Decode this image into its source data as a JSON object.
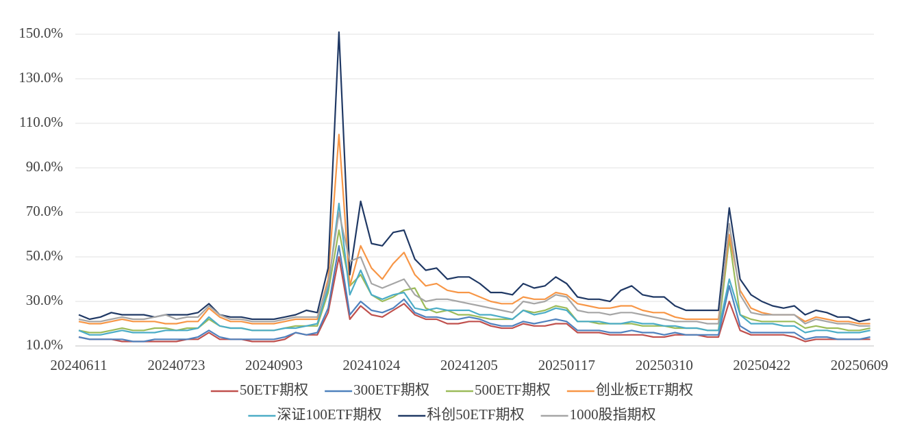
{
  "chart_data": {
    "type": "line",
    "categories": [
      "20240611",
      null,
      null,
      null,
      null,
      null,
      null,
      null,
      null,
      "20240723",
      null,
      null,
      null,
      null,
      null,
      null,
      null,
      null,
      "20240903",
      null,
      null,
      null,
      null,
      null,
      null,
      null,
      null,
      "20241024",
      null,
      null,
      null,
      null,
      null,
      null,
      null,
      null,
      "20241205",
      null,
      null,
      null,
      null,
      null,
      null,
      null,
      null,
      "20250117",
      null,
      null,
      null,
      null,
      null,
      null,
      null,
      null,
      "20250310",
      null,
      null,
      null,
      null,
      null,
      null,
      null,
      null,
      "20250422",
      null,
      null,
      null,
      null,
      null,
      null,
      null,
      null,
      "20250609",
      null
    ],
    "ylim": [
      10,
      150
    ],
    "yticks": [
      {
        "value": 10,
        "label": "10.0%"
      },
      {
        "value": 30,
        "label": "30.0%"
      },
      {
        "value": 50,
        "label": "50.0%"
      },
      {
        "value": 70,
        "label": "70.0%"
      },
      {
        "value": 90,
        "label": "90.0%"
      },
      {
        "value": 110,
        "label": "110.0%"
      },
      {
        "value": 130,
        "label": "130.0%"
      },
      {
        "value": 150,
        "label": "150.0%"
      }
    ],
    "grid": true,
    "series": [
      {
        "name": "50ETF期权",
        "color": "#c0504d",
        "values": [
          14,
          13,
          13,
          13,
          12,
          12,
          12,
          12,
          12,
          12,
          13,
          13,
          16,
          13,
          13,
          13,
          12,
          12,
          12,
          13,
          16,
          15,
          15,
          25,
          50,
          22,
          28,
          24,
          23,
          26,
          29,
          24,
          22,
          22,
          20,
          20,
          21,
          21,
          19,
          18,
          18,
          20,
          19,
          19,
          20,
          20,
          16,
          16,
          16,
          15,
          15,
          15,
          15,
          14,
          14,
          15,
          15,
          15,
          14,
          14,
          30,
          17,
          15,
          15,
          15,
          15,
          14,
          12,
          13,
          13,
          13,
          13,
          13,
          13
        ]
      },
      {
        "name": "300ETF期权",
        "color": "#4f81bd",
        "values": [
          14,
          13,
          13,
          13,
          13,
          12,
          12,
          13,
          13,
          13,
          13,
          14,
          17,
          14,
          13,
          13,
          13,
          13,
          13,
          14,
          16,
          15,
          16,
          27,
          55,
          24,
          30,
          26,
          25,
          27,
          31,
          25,
          23,
          23,
          22,
          22,
          23,
          22,
          20,
          19,
          19,
          21,
          20,
          21,
          22,
          21,
          17,
          17,
          17,
          16,
          16,
          17,
          16,
          16,
          15,
          16,
          15,
          15,
          15,
          15,
          37,
          19,
          16,
          16,
          16,
          16,
          16,
          13,
          14,
          14,
          13,
          13,
          13,
          14
        ]
      },
      {
        "name": "500ETF期权",
        "color": "#9bbb59",
        "values": [
          17,
          16,
          16,
          17,
          18,
          17,
          17,
          18,
          18,
          17,
          18,
          18,
          22,
          19,
          18,
          18,
          17,
          17,
          17,
          18,
          19,
          19,
          19,
          34,
          62,
          37,
          42,
          33,
          30,
          32,
          35,
          36,
          27,
          25,
          26,
          24,
          24,
          23,
          22,
          22,
          22,
          26,
          25,
          26,
          28,
          27,
          21,
          21,
          20,
          20,
          20,
          20,
          19,
          19,
          19,
          18,
          18,
          18,
          17,
          17,
          58,
          24,
          22,
          21,
          21,
          21,
          21,
          18,
          19,
          18,
          18,
          17,
          17,
          18
        ]
      },
      {
        "name": "创业板ETF期权",
        "color": "#f79646",
        "values": [
          21,
          20,
          20,
          21,
          22,
          21,
          21,
          21,
          20,
          20,
          21,
          21,
          27,
          23,
          21,
          21,
          20,
          20,
          20,
          21,
          22,
          22,
          22,
          40,
          105,
          37,
          55,
          45,
          40,
          47,
          52,
          42,
          37,
          38,
          35,
          34,
          34,
          32,
          30,
          29,
          29,
          32,
          31,
          31,
          34,
          33,
          29,
          28,
          27,
          27,
          28,
          28,
          26,
          25,
          25,
          23,
          22,
          22,
          22,
          22,
          60,
          35,
          27,
          25,
          24,
          24,
          24,
          21,
          23,
          22,
          21,
          21,
          20,
          20
        ]
      },
      {
        "name": "深证100ETF期权",
        "color": "#4bacc6",
        "values": [
          17,
          15,
          15,
          16,
          17,
          16,
          16,
          16,
          17,
          17,
          17,
          18,
          23,
          19,
          18,
          18,
          17,
          17,
          17,
          18,
          18,
          19,
          20,
          36,
          74,
          33,
          44,
          33,
          31,
          33,
          34,
          27,
          26,
          27,
          26,
          26,
          26,
          24,
          24,
          23,
          22,
          26,
          24,
          25,
          27,
          26,
          21,
          21,
          21,
          20,
          20,
          21,
          20,
          20,
          19,
          19,
          18,
          18,
          17,
          17,
          40,
          24,
          20,
          20,
          20,
          19,
          19,
          16,
          17,
          17,
          16,
          16,
          16,
          17
        ]
      },
      {
        "name": "科创50ETF期权",
        "color": "#1f3864",
        "values": [
          24,
          22,
          23,
          25,
          24,
          24,
          24,
          23,
          24,
          24,
          24,
          25,
          29,
          24,
          23,
          23,
          22,
          22,
          22,
          23,
          24,
          26,
          25,
          45,
          151,
          42,
          75,
          56,
          55,
          61,
          62,
          49,
          44,
          45,
          40,
          41,
          41,
          38,
          34,
          34,
          33,
          38,
          36,
          37,
          41,
          38,
          32,
          31,
          31,
          30,
          35,
          37,
          33,
          32,
          32,
          28,
          26,
          26,
          26,
          26,
          72,
          40,
          33,
          30,
          28,
          27,
          28,
          24,
          26,
          25,
          23,
          23,
          21,
          22
        ]
      },
      {
        "name": "1000股指期权",
        "color": "#a5a5a5",
        "values": [
          22,
          21,
          21,
          22,
          23,
          22,
          22,
          23,
          24,
          22,
          23,
          23,
          28,
          24,
          22,
          22,
          21,
          21,
          21,
          22,
          23,
          23,
          23,
          38,
          70,
          48,
          50,
          38,
          36,
          38,
          40,
          33,
          30,
          31,
          31,
          30,
          29,
          28,
          27,
          26,
          25,
          30,
          29,
          30,
          33,
          32,
          26,
          25,
          25,
          24,
          25,
          25,
          24,
          23,
          22,
          21,
          21,
          21,
          20,
          20,
          65,
          33,
          25,
          24,
          24,
          24,
          24,
          20,
          22,
          21,
          20,
          20,
          19,
          19
        ]
      }
    ]
  }
}
